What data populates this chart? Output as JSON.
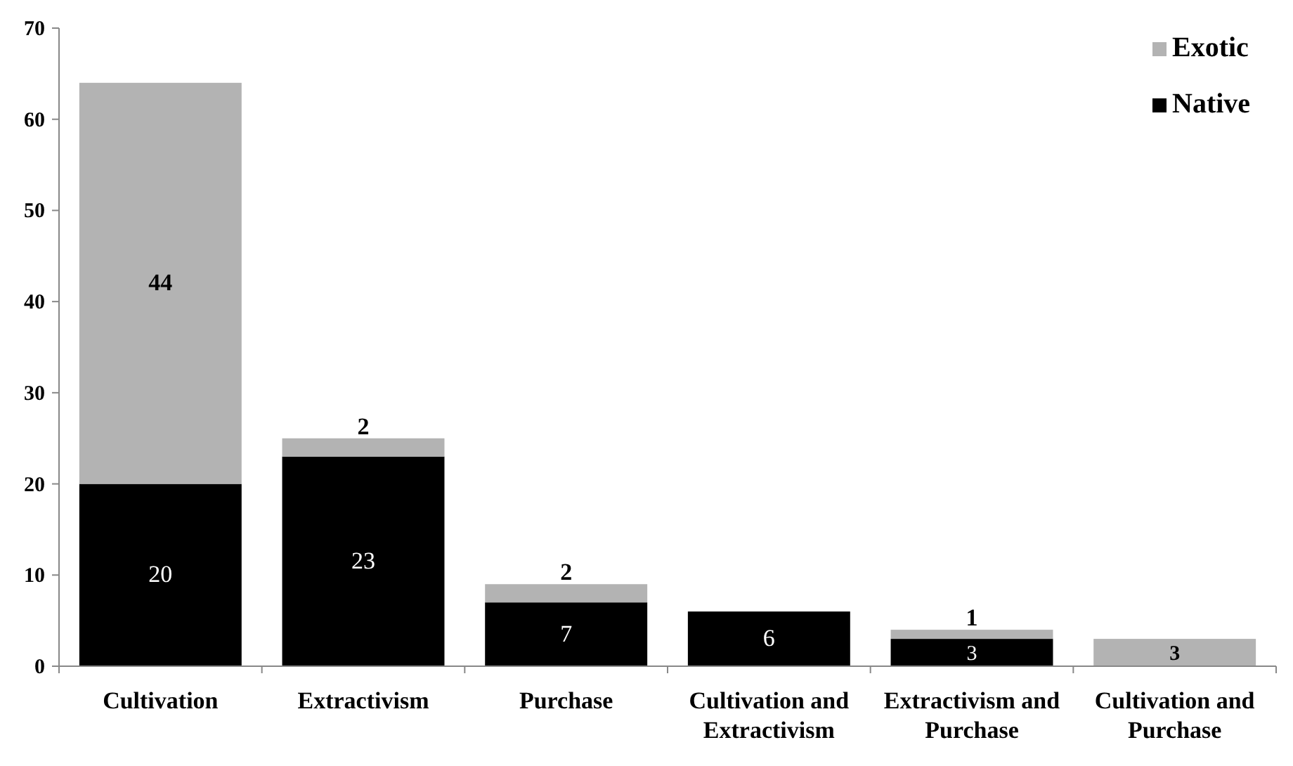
{
  "chart_data": {
    "type": "bar",
    "stacked": true,
    "categories": [
      "Cultivation",
      "Extractivism",
      "Purchase",
      "Cultivation and Extractivism",
      "Extractivism and Purchase",
      "Cultivation and Purchase"
    ],
    "series": [
      {
        "name": "Native",
        "color": "#000000",
        "values": [
          20,
          23,
          7,
          6,
          3,
          0
        ],
        "value_labels": [
          "20",
          "23",
          "7",
          "6",
          "3",
          null
        ]
      },
      {
        "name": "Exotic",
        "color": "#b3b3b3",
        "values": [
          44,
          2,
          2,
          0,
          1,
          3
        ],
        "value_labels": [
          "44",
          "2",
          "2",
          null,
          "1",
          "3"
        ]
      }
    ],
    "ylim": [
      0,
      70
    ],
    "yticks": [
      0,
      10,
      20,
      30,
      40,
      50,
      60,
      70
    ],
    "legend": "top right",
    "grid": false
  }
}
